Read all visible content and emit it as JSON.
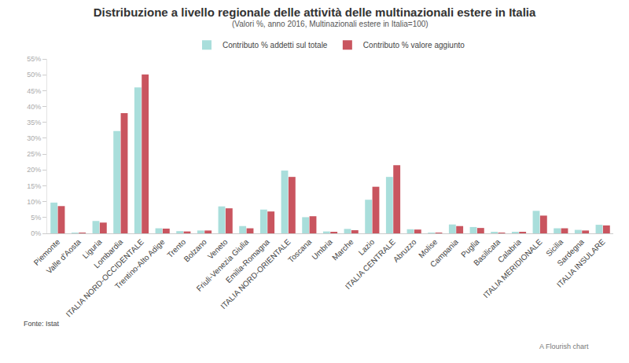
{
  "chart_data": {
    "type": "bar",
    "title": "Distribuzione a livello regionale delle attività delle multinazionali estere in Italia",
    "subtitle": "(Valori %, anno 2016, Multinazionali estere in Italia=100)",
    "source": "Fonte: Istat",
    "credit": "A Flourish chart",
    "categories": [
      "Piemonte",
      "Valle d'Aosta",
      "Liguria",
      "Lombardia",
      "ITALIA NORD-OCCIDENTALE",
      "Trentino-Alto Adige",
      "Trento",
      "Bolzano",
      "Veneto",
      "Friuli-Venezia Giulia",
      "Emilia-Romagna",
      "ITALIA NORD-ORIENTALE",
      "Toscana",
      "Umbria",
      "Marche",
      "Lazio",
      "ITALIA CENTRALE",
      "Abruzzo",
      "Molise",
      "Campania",
      "Puglia",
      "Basilicata",
      "Calabria",
      "ITALIA MERIDIONALE",
      "Sicilia",
      "Sardegna",
      "ITALIA INSULARE"
    ],
    "series": [
      {
        "name": "Contributo % addetti sul totale",
        "color": "#a9dedb",
        "values": [
          9.7,
          0.1,
          3.9,
          32.3,
          46.0,
          1.6,
          0.7,
          0.9,
          8.5,
          2.3,
          7.5,
          19.8,
          5.1,
          0.6,
          1.4,
          10.6,
          17.8,
          1.3,
          0.1,
          2.8,
          2.0,
          0.3,
          0.3,
          7.1,
          1.6,
          1.1,
          2.7
        ]
      },
      {
        "name": "Contributo % valore aggiunto",
        "color": "#c9555f",
        "values": [
          8.6,
          0.1,
          3.4,
          37.9,
          50.1,
          1.5,
          0.6,
          0.9,
          7.9,
          1.6,
          6.9,
          17.8,
          5.4,
          0.5,
          1.0,
          14.7,
          21.5,
          1.2,
          0.1,
          2.3,
          1.7,
          0.2,
          0.3,
          5.6,
          1.6,
          0.9,
          2.5
        ]
      }
    ],
    "ylim": [
      0,
      55
    ],
    "yticks": [
      {
        "value": 0,
        "label": "0%"
      },
      {
        "value": 5,
        "label": "5%"
      },
      {
        "value": 10,
        "label": "10%"
      },
      {
        "value": 15,
        "label": "15%"
      },
      {
        "value": 20,
        "label": "20%"
      },
      {
        "value": 25,
        "label": "25%"
      },
      {
        "value": 30,
        "label": "30%"
      },
      {
        "value": 35,
        "label": "35%"
      },
      {
        "value": 40,
        "label": "40%"
      },
      {
        "value": 45,
        "label": "45%"
      },
      {
        "value": 50,
        "label": "50%"
      },
      {
        "value": 55,
        "label": "55%"
      }
    ],
    "grid": false,
    "legend": "top"
  }
}
